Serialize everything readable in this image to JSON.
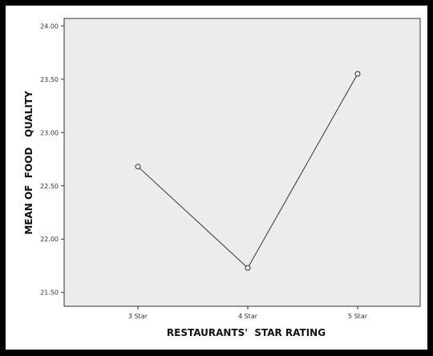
{
  "chart_data": {
    "type": "line",
    "title": "",
    "xlabel": "RESTAURANTS'  STAR RATING",
    "ylabel": "MEAN OF  FOOD   QUALITY",
    "categories": [
      "3 Star",
      "4 Star",
      "5 Star"
    ],
    "series": [
      {
        "values": [
          22.68,
          21.73,
          23.55
        ]
      }
    ],
    "ylim": [
      21.37,
      24.07
    ],
    "yticks": [
      "21.50",
      "22.00",
      "22.50",
      "23.00",
      "23.50",
      "24.00"
    ],
    "grid": false,
    "legend": "none",
    "colors": {
      "plot_background": "#ececec",
      "line": "#333333",
      "frame": "#000000"
    }
  }
}
